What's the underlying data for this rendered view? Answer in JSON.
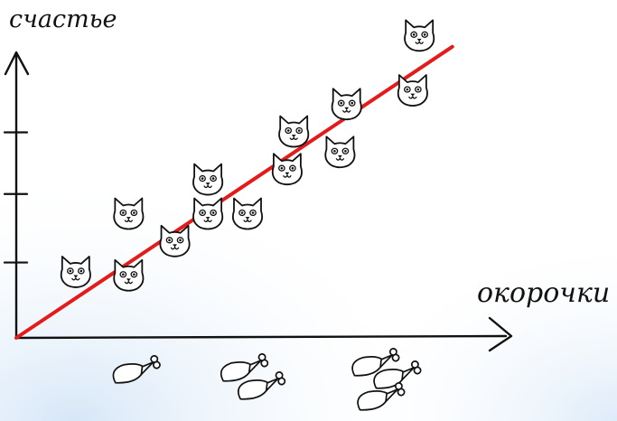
{
  "chart_data": {
    "type": "scatter",
    "title": "",
    "xlabel": "окорочки",
    "ylabel": "счастье",
    "marker": "cat-face-icon",
    "xlim": [
      0,
      3.5
    ],
    "ylim": [
      0,
      4.8
    ],
    "points": [
      {
        "x": 0.45,
        "y": 0.95
      },
      {
        "x": 0.85,
        "y": 0.9
      },
      {
        "x": 0.85,
        "y": 1.8
      },
      {
        "x": 1.2,
        "y": 1.4
      },
      {
        "x": 1.45,
        "y": 1.8
      },
      {
        "x": 1.45,
        "y": 2.3
      },
      {
        "x": 1.75,
        "y": 1.8
      },
      {
        "x": 2.05,
        "y": 2.45
      },
      {
        "x": 2.1,
        "y": 3.0
      },
      {
        "x": 2.45,
        "y": 2.7
      },
      {
        "x": 2.5,
        "y": 3.4
      },
      {
        "x": 3.0,
        "y": 3.6
      },
      {
        "x": 3.05,
        "y": 4.4
      }
    ],
    "trend_line": {
      "x": [
        0,
        3.3
      ],
      "y": [
        0,
        4.25
      ]
    },
    "x_icons": [
      {
        "x": 0.9,
        "count": 1
      },
      {
        "x": 1.75,
        "count": 2
      },
      {
        "x": 2.75,
        "count": 3
      }
    ],
    "y_ticks": [
      1.1,
      2.1,
      3.0
    ],
    "colors": {
      "axis": "#111111",
      "trend": "#e31b1b",
      "background_glow": "#cfe2f6"
    },
    "icons": {
      "point": "cat-face-icon",
      "x_axis_item": "chicken-leg-icon"
    }
  }
}
